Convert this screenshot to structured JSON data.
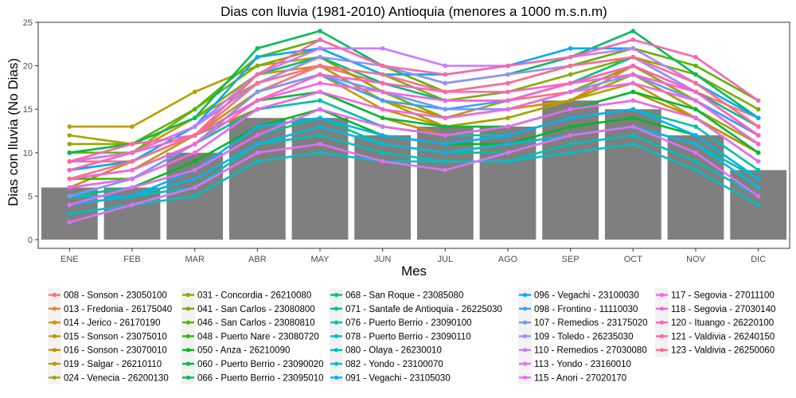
{
  "colors": {
    "panel_border": "#333333",
    "bar_fill": "#7f7f7f",
    "background": "#ffffff"
  },
  "chart_data": {
    "type": "line",
    "title": "Dias con lluvia (1981-2010) Antioquia (menores a 1000 m.s.n.m)",
    "xlabel": "Mes",
    "ylabel": "Dias con lluvia (No Dias)",
    "categories": [
      "ENE",
      "FEB",
      "MAR",
      "ABR",
      "MAY",
      "JUN",
      "JUL",
      "AGO",
      "SEP",
      "OCT",
      "NOV",
      "DIC"
    ],
    "ylim": [
      -1,
      25
    ],
    "yticks": [
      0,
      5,
      10,
      15,
      20,
      25
    ],
    "grid": false,
    "legend_position": "bottom",
    "bars": {
      "values": [
        6,
        6,
        10,
        14,
        14,
        12,
        13,
        13,
        16,
        15,
        12,
        8
      ]
    },
    "series": [
      {
        "name": "008 - Sonson - 23050100",
        "color": "#F8766D",
        "values": [
          9,
          9,
          12,
          17,
          20,
          18,
          16,
          16,
          17,
          20,
          17,
          14
        ]
      },
      {
        "name": "013 - Fredonia - 26175040",
        "color": "#EA8331",
        "values": [
          9,
          10,
          13,
          18,
          21,
          17,
          15,
          15,
          16,
          20,
          16,
          12
        ]
      },
      {
        "name": "014 - Jerico - 26170190",
        "color": "#D89000",
        "values": [
          8,
          10,
          14,
          19,
          20,
          16,
          14,
          15,
          16,
          19,
          15,
          11
        ]
      },
      {
        "name": "015 - Sonson - 23075010",
        "color": "#C09B00",
        "values": [
          7,
          8,
          12,
          17,
          19,
          15,
          13,
          14,
          16,
          18,
          14,
          10
        ]
      },
      {
        "name": "016 - Sonson - 23070010",
        "color": "#C38E00",
        "values": [
          6,
          9,
          12,
          15,
          17,
          14,
          12,
          13,
          15,
          17,
          14,
          10
        ]
      },
      {
        "name": "019 - Salgar - 26210110",
        "color": "#B89E00",
        "values": [
          13,
          13,
          17,
          20,
          21,
          17,
          14,
          16,
          18,
          20,
          16,
          11
        ]
      },
      {
        "name": "024 - Venecia - 26200130",
        "color": "#A3A500",
        "values": [
          12,
          11,
          14,
          18,
          20,
          16,
          13,
          14,
          16,
          19,
          15,
          11
        ]
      },
      {
        "name": "031 - Concordia - 26210080",
        "color": "#8FAA00",
        "values": [
          11,
          11,
          14,
          19,
          21,
          17,
          14,
          15,
          17,
          20,
          16,
          12
        ]
      },
      {
        "name": "041 - San Carlos - 23080800",
        "color": "#7CAE00",
        "values": [
          10,
          10,
          15,
          20,
          22,
          19,
          16,
          17,
          19,
          21,
          19,
          15
        ]
      },
      {
        "name": "046 - San Carlos - 23080810",
        "color": "#5BB300",
        "values": [
          10,
          11,
          15,
          21,
          23,
          20,
          17,
          18,
          20,
          22,
          20,
          16
        ]
      },
      {
        "name": "048 - Puerto Nare - 23080720",
        "color": "#39B600",
        "values": [
          7,
          7,
          11,
          15,
          16,
          13,
          12,
          13,
          15,
          16,
          14,
          9
        ]
      },
      {
        "name": "050 - Anza - 26210090",
        "color": "#00B81F",
        "values": [
          5,
          6,
          9,
          13,
          15,
          12,
          11,
          11,
          13,
          14,
          12,
          7
        ]
      },
      {
        "name": "060 - Puerto Berrio - 23090020",
        "color": "#00BA38",
        "values": [
          8,
          9,
          12,
          16,
          17,
          14,
          13,
          13,
          15,
          17,
          15,
          10
        ]
      },
      {
        "name": "066 - Puerto Berrio - 23095010",
        "color": "#00BC59",
        "values": [
          10,
          11,
          14,
          22,
          24,
          20,
          18,
          19,
          21,
          24,
          19,
          14
        ]
      },
      {
        "name": "068 - San Roque - 23085080",
        "color": "#00BF7D",
        "values": [
          9,
          10,
          13,
          19,
          21,
          18,
          16,
          16,
          18,
          21,
          17,
          13
        ]
      },
      {
        "name": "071 - Santafe de Antioquia - 26225030",
        "color": "#00C097",
        "values": [
          5,
          6,
          8,
          12,
          14,
          11,
          10,
          10,
          12,
          13,
          11,
          7
        ]
      },
      {
        "name": "076 - Puerto Berrio - 23090100",
        "color": "#00C1AA",
        "values": [
          7,
          8,
          11,
          15,
          16,
          13,
          12,
          12,
          14,
          15,
          13,
          8
        ]
      },
      {
        "name": "078 - Puerto Berrio - 23090110",
        "color": "#00C0BB",
        "values": [
          4,
          5,
          6,
          11,
          12,
          10,
          9,
          9,
          11,
          12,
          9,
          5
        ]
      },
      {
        "name": "080 - Olaya - 26230010",
        "color": "#00BFC4",
        "values": [
          3,
          4,
          5,
          9,
          10,
          9,
          9,
          9,
          10,
          11,
          8,
          4
        ]
      },
      {
        "name": "082 - Yondo - 23100070",
        "color": "#00BAE0",
        "values": [
          5,
          5,
          7,
          11,
          13,
          11,
          10,
          11,
          12,
          13,
          11,
          6
        ]
      },
      {
        "name": "091 - Vegachi - 23105030",
        "color": "#00B4EF",
        "values": [
          4,
          5,
          8,
          13,
          14,
          12,
          11,
          12,
          14,
          15,
          12,
          7
        ]
      },
      {
        "name": "096 - Vegachi - 23100030",
        "color": "#00A9FF",
        "values": [
          8,
          9,
          13,
          21,
          22,
          19,
          19,
          20,
          22,
          22,
          18,
          14
        ]
      },
      {
        "name": "098 - Frontino - 11110030",
        "color": "#35A2FF",
        "values": [
          6,
          7,
          11,
          17,
          19,
          16,
          15,
          16,
          18,
          19,
          16,
          12
        ]
      },
      {
        "name": "107 - Remedios - 23175020",
        "color": "#7698FF",
        "values": [
          5,
          7,
          11,
          17,
          19,
          17,
          15,
          15,
          17,
          19,
          16,
          11
        ]
      },
      {
        "name": "109 - Toledo - 26235030",
        "color": "#9590FF",
        "values": [
          9,
          10,
          13,
          18,
          21,
          20,
          18,
          19,
          20,
          21,
          17,
          12
        ]
      },
      {
        "name": "110 - Remedios - 27030080",
        "color": "#C77CFF",
        "values": [
          9,
          10,
          13,
          19,
          22,
          22,
          20,
          20,
          21,
          22,
          18,
          13
        ]
      },
      {
        "name": "113 - Yondo - 23160010",
        "color": "#DC71FA",
        "values": [
          2,
          4,
          6,
          10,
          11,
          9,
          8,
          10,
          12,
          13,
          10,
          5
        ]
      },
      {
        "name": "115 - Anori - 27020170",
        "color": "#E76BF3",
        "values": [
          4,
          6,
          8,
          12,
          15,
          13,
          12,
          13,
          15,
          16,
          14,
          9
        ]
      },
      {
        "name": "117 - Segovia - 27011100",
        "color": "#F265E7",
        "values": [
          6,
          7,
          10,
          15,
          17,
          15,
          14,
          15,
          17,
          18,
          16,
          11
        ]
      },
      {
        "name": "118 - Segovia - 27030140",
        "color": "#FA62DB",
        "values": [
          7,
          8,
          11,
          16,
          18,
          17,
          16,
          16,
          18,
          19,
          17,
          12
        ]
      },
      {
        "name": "120 - Ituango - 26220100",
        "color": "#FF61C3",
        "values": [
          8,
          10,
          12,
          16,
          19,
          18,
          17,
          17,
          18,
          20,
          17,
          12
        ]
      },
      {
        "name": "121 - Valdivia - 26240150",
        "color": "#FF65AF",
        "values": [
          9,
          11,
          12,
          19,
          23,
          20,
          19,
          20,
          21,
          23,
          21,
          16
        ]
      },
      {
        "name": "123 - Valdivia - 26250060",
        "color": "#FF6C91",
        "values": [
          7,
          9,
          12,
          18,
          20,
          19,
          17,
          18,
          20,
          21,
          18,
          13
        ]
      }
    ]
  }
}
